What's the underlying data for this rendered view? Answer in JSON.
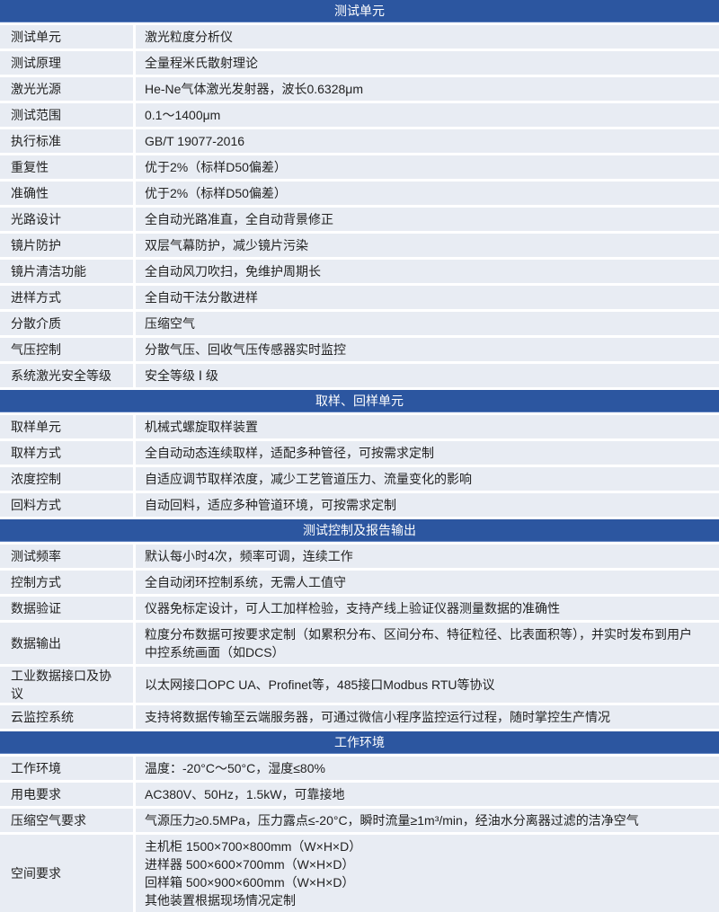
{
  "sections": [
    {
      "title": "测试单元",
      "rows": [
        {
          "label": "测试单元",
          "value": [
            "激光粒度分析仪"
          ]
        },
        {
          "label": "测试原理",
          "value": [
            "全量程米氏散射理论"
          ]
        },
        {
          "label": "激光光源",
          "value": [
            "He-Ne气体激光发射器，波长0.6328μm"
          ]
        },
        {
          "label": "测试范围",
          "value": [
            "0.1～1400μm"
          ]
        },
        {
          "label": "执行标准",
          "value": [
            "GB/T 19077-2016"
          ]
        },
        {
          "label": "重复性",
          "value": [
            "优于2%（标样D50偏差）"
          ]
        },
        {
          "label": "准确性",
          "value": [
            "优于2%（标样D50偏差）"
          ]
        },
        {
          "label": "光路设计",
          "value": [
            "全自动光路准直，全自动背景修正"
          ]
        },
        {
          "label": "镜片防护",
          "value": [
            "双层气幕防护，减少镜片污染"
          ]
        },
        {
          "label": "镜片清洁功能",
          "value": [
            "全自动风刀吹扫，免维护周期长"
          ]
        },
        {
          "label": "进样方式",
          "value": [
            "全自动干法分散进样"
          ]
        },
        {
          "label": "分散介质",
          "value": [
            "压缩空气"
          ]
        },
        {
          "label": "气压控制",
          "value": [
            "分散气压、回收气压传感器实时监控"
          ]
        },
        {
          "label": "系统激光安全等级",
          "value": [
            "安全等级 Ⅰ 级"
          ]
        }
      ]
    },
    {
      "title": "取样、回样单元",
      "rows": [
        {
          "label": "取样单元",
          "value": [
            "机械式螺旋取样装置"
          ]
        },
        {
          "label": "取样方式",
          "value": [
            "全自动动态连续取样，适配多种管径，可按需求定制"
          ]
        },
        {
          "label": "浓度控制",
          "value": [
            "自适应调节取样浓度，减少工艺管道压力、流量变化的影响"
          ]
        },
        {
          "label": "回料方式",
          "value": [
            "自动回料，适应多种管道环境，可按需求定制"
          ]
        }
      ]
    },
    {
      "title": "测试控制及报告输出",
      "rows": [
        {
          "label": "测试频率",
          "value": [
            "默认每小时4次，频率可调，连续工作"
          ]
        },
        {
          "label": "控制方式",
          "value": [
            "全自动闭环控制系统，无需人工值守"
          ]
        },
        {
          "label": "数据验证",
          "value": [
            "仪器免标定设计，可人工加样检验，支持产线上验证仪器测量数据的准确性"
          ]
        },
        {
          "label": "数据输出",
          "value": [
            "粒度分布数据可按要求定制（如累积分布、区间分布、特征粒径、比表面积等），并实时发布到用户",
            "中控系统画面（如DCS）"
          ]
        },
        {
          "label": "工业数据接口及协议",
          "value": [
            "以太网接口OPC UA、Profinet等，485接口Modbus RTU等协议"
          ]
        },
        {
          "label": "云监控系统",
          "value": [
            "支持将数据传输至云端服务器，可通过微信小程序监控运行过程，随时掌控生产情况"
          ]
        }
      ]
    },
    {
      "title": "工作环境",
      "rows": [
        {
          "label": "工作环境",
          "value": [
            "温度：-20°C～50°C，湿度≤80%"
          ]
        },
        {
          "label": "用电要求",
          "value": [
            "AC380V、50Hz，1.5kW，可靠接地"
          ]
        },
        {
          "label": "压缩空气要求",
          "value": [
            "气源压力≥0.5MPa，压力露点≤-20°C，瞬时流量≥1m³/min，经油水分离器过滤的洁净空气"
          ]
        },
        {
          "label": "空间要求",
          "value": [
            "主机柜 1500×700×800mm（W×H×D）",
            "进样器 500×600×700mm（W×H×D）",
            "回样箱 500×900×600mm（W×H×D）",
            "其他装置根据现场情况定制"
          ]
        }
      ]
    }
  ]
}
